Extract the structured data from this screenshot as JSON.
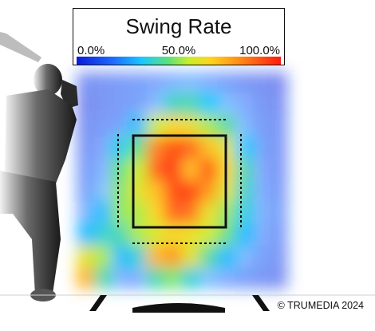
{
  "chart_data": {
    "type": "heatmap",
    "title": "Swing Rate",
    "colorbar": {
      "ticks": [
        "0.0%",
        "50.0%",
        "100.0%"
      ],
      "min": 0,
      "max": 100,
      "unit": "%"
    },
    "annotations": {
      "credit": "© TRUMEDIA 2024"
    },
    "grid": false,
    "legend_placement": "top-center",
    "strike_zone": "solid-box",
    "shadow_zone": "dotted-box",
    "columns": 12,
    "rows": 10,
    "values": [
      [
        8,
        10,
        12,
        14,
        16,
        20,
        22,
        18,
        14,
        10,
        8,
        6
      ],
      [
        6,
        10,
        12,
        14,
        22,
        38,
        40,
        32,
        24,
        18,
        10,
        8
      ],
      [
        8,
        12,
        14,
        30,
        55,
        65,
        62,
        52,
        42,
        22,
        12,
        10
      ],
      [
        10,
        16,
        34,
        45,
        82,
        92,
        88,
        70,
        60,
        32,
        14,
        10
      ],
      [
        12,
        20,
        45,
        55,
        88,
        96,
        70,
        92,
        65,
        40,
        16,
        10
      ],
      [
        14,
        24,
        48,
        60,
        70,
        92,
        94,
        78,
        60,
        38,
        18,
        12
      ],
      [
        20,
        30,
        50,
        52,
        65,
        88,
        85,
        62,
        50,
        35,
        20,
        14
      ],
      [
        30,
        36,
        40,
        52,
        58,
        64,
        62,
        56,
        46,
        30,
        18,
        12
      ],
      [
        60,
        52,
        30,
        36,
        72,
        78,
        60,
        42,
        30,
        22,
        14,
        10
      ],
      [
        72,
        40,
        20,
        18,
        40,
        48,
        36,
        24,
        18,
        14,
        10,
        8
      ]
    ],
    "colors": {
      "low": "#0a1bd8",
      "mid": "#c8ef2a",
      "high": "#ff1a10",
      "zone": "#111111"
    }
  }
}
